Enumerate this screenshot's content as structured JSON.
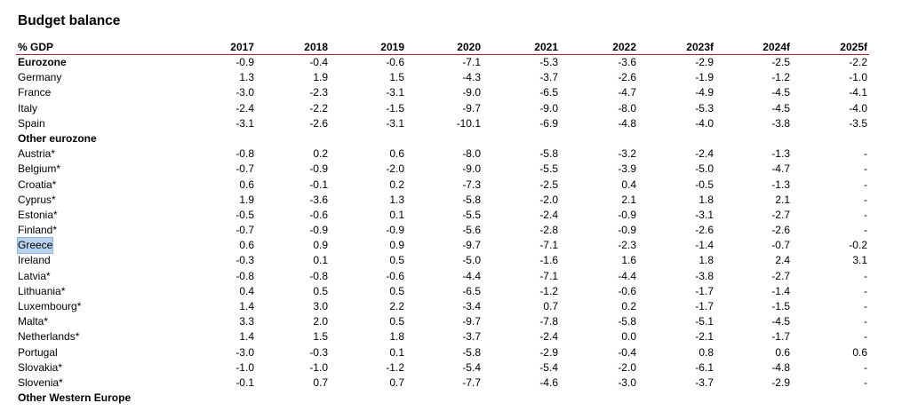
{
  "title": "Budget balance",
  "header": {
    "label": "% GDP",
    "years": [
      "2017",
      "2018",
      "2019",
      "2020",
      "2021",
      "2022",
      "2023f",
      "2024f",
      "2025f"
    ]
  },
  "rows": [
    {
      "label": "Eurozone",
      "group": true,
      "values": [
        "-0.9",
        "-0.4",
        "-0.6",
        "-7.1",
        "-5.3",
        "-3.6",
        "-2.9",
        "-2.5",
        "-2.2"
      ]
    },
    {
      "label": "Germany",
      "values": [
        "1.3",
        "1.9",
        "1.5",
        "-4.3",
        "-3.7",
        "-2.6",
        "-1.9",
        "-1.2",
        "-1.0"
      ]
    },
    {
      "label": "France",
      "values": [
        "-3.0",
        "-2.3",
        "-3.1",
        "-9.0",
        "-6.5",
        "-4.7",
        "-4.9",
        "-4.5",
        "-4.1"
      ]
    },
    {
      "label": "Italy",
      "values": [
        "-2.4",
        "-2.2",
        "-1.5",
        "-9.7",
        "-9.0",
        "-8.0",
        "-5.3",
        "-4.5",
        "-4.0"
      ]
    },
    {
      "label": "Spain",
      "values": [
        "-3.1",
        "-2.6",
        "-3.1",
        "-10.1",
        "-6.9",
        "-4.8",
        "-4.0",
        "-3.8",
        "-3.5"
      ]
    },
    {
      "label": "Other eurozone",
      "group": true,
      "values": [
        "",
        "",
        "",
        "",
        "",
        "",
        "",
        "",
        ""
      ]
    },
    {
      "label": "Austria*",
      "values": [
        "-0.8",
        "0.2",
        "0.6",
        "-8.0",
        "-5.8",
        "-3.2",
        "-2.4",
        "-1.3",
        "-"
      ]
    },
    {
      "label": "Belgium*",
      "values": [
        "-0.7",
        "-0.9",
        "-2.0",
        "-9.0",
        "-5.5",
        "-3.9",
        "-5.0",
        "-4.7",
        "-"
      ]
    },
    {
      "label": "Croatia*",
      "values": [
        "0.6",
        "-0.1",
        "0.2",
        "-7.3",
        "-2.5",
        "0.4",
        "-0.5",
        "-1.3",
        "-"
      ]
    },
    {
      "label": "Cyprus*",
      "values": [
        "1.9",
        "-3.6",
        "1.3",
        "-5.8",
        "-2.0",
        "2.1",
        "1.8",
        "2.1",
        "-"
      ]
    },
    {
      "label": "Estonia*",
      "values": [
        "-0.5",
        "-0.6",
        "0.1",
        "-5.5",
        "-2.4",
        "-0.9",
        "-3.1",
        "-2.7",
        "-"
      ]
    },
    {
      "label": "Finland*",
      "values": [
        "-0.7",
        "-0.9",
        "-0.9",
        "-5.6",
        "-2.8",
        "-0.9",
        "-2.6",
        "-2.6",
        "-"
      ]
    },
    {
      "label": "Greece",
      "selected": true,
      "values": [
        "0.6",
        "0.9",
        "0.9",
        "-9.7",
        "-7.1",
        "-2.3",
        "-1.4",
        "-0.7",
        "-0.2"
      ]
    },
    {
      "label": "Ireland",
      "values": [
        "-0.3",
        "0.1",
        "0.5",
        "-5.0",
        "-1.6",
        "1.6",
        "1.8",
        "2.4",
        "3.1"
      ]
    },
    {
      "label": "Latvia*",
      "values": [
        "-0.8",
        "-0.8",
        "-0.6",
        "-4.4",
        "-7.1",
        "-4.4",
        "-3.8",
        "-2.7",
        "-"
      ]
    },
    {
      "label": "Lithuania*",
      "values": [
        "0.4",
        "0.5",
        "0.5",
        "-6.5",
        "-1.2",
        "-0.6",
        "-1.7",
        "-1.4",
        "-"
      ]
    },
    {
      "label": "Luxembourg*",
      "values": [
        "1.4",
        "3.0",
        "2.2",
        "-3.4",
        "0.7",
        "0.2",
        "-1.7",
        "-1.5",
        "-"
      ]
    },
    {
      "label": "Malta*",
      "values": [
        "3.3",
        "2.0",
        "0.5",
        "-9.7",
        "-7.8",
        "-5.8",
        "-5.1",
        "-4.5",
        "-"
      ]
    },
    {
      "label": "Netherlands*",
      "values": [
        "1.4",
        "1.5",
        "1.8",
        "-3.7",
        "-2.4",
        "0.0",
        "-2.1",
        "-1.7",
        "-"
      ]
    },
    {
      "label": "Portugal",
      "values": [
        "-3.0",
        "-0.3",
        "0.1",
        "-5.8",
        "-2.9",
        "-0.4",
        "0.8",
        "0.6",
        "0.6"
      ]
    },
    {
      "label": "Slovakia*",
      "values": [
        "-1.0",
        "-1.0",
        "-1.2",
        "-5.4",
        "-5.4",
        "-2.0",
        "-6.1",
        "-4.8",
        "-"
      ]
    },
    {
      "label": "Slovenia*",
      "values": [
        "-0.1",
        "0.7",
        "0.7",
        "-7.7",
        "-4.6",
        "-3.0",
        "-3.7",
        "-2.9",
        "-"
      ]
    },
    {
      "label": "Other Western Europe",
      "group": true,
      "values": [
        "",
        "",
        "",
        "",
        "",
        "",
        "",
        "",
        ""
      ]
    }
  ]
}
